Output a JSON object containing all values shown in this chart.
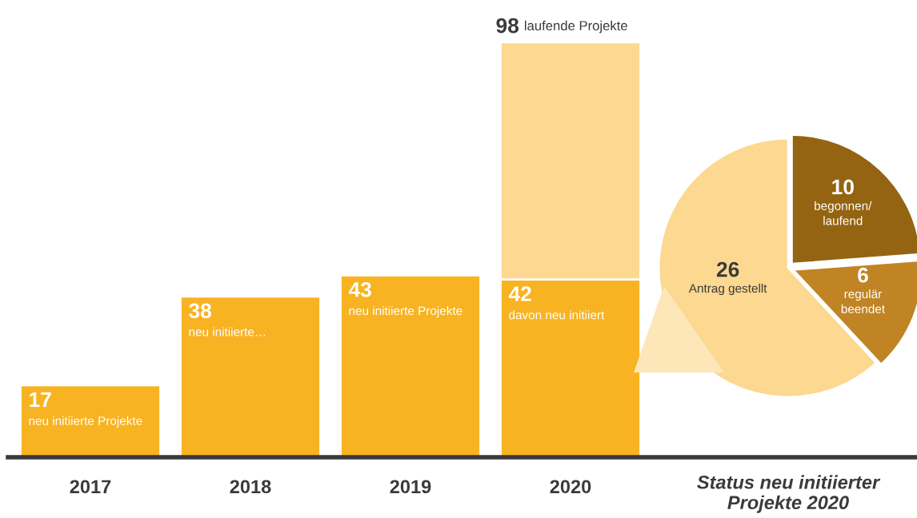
{
  "chart_data": [
    {
      "type": "bar",
      "stacked": true,
      "legend": false,
      "grid": false,
      "categories": [
        "2017",
        "2018",
        "2019",
        "2020"
      ],
      "series": [
        {
          "color": "#f8b322",
          "values": [
            17,
            38,
            43,
            42
          ],
          "value_labels": [
            "17",
            "38",
            "43",
            "42"
          ]
        },
        {
          "color": "#fcd890",
          "values": [
            null,
            null,
            null,
            56
          ]
        }
      ],
      "totals": [
        null,
        null,
        null,
        "98"
      ],
      "annotations": [
        {
          "text": "neu initiierte Projekte",
          "x": "2017",
          "y": 17
        },
        {
          "text": "neu initiierte…",
          "x": "2018",
          "y": 38
        },
        {
          "text": "neu initiierte Projekte",
          "x": "2019",
          "y": 43
        },
        {
          "text": "davon neu initiiert",
          "x": "2020",
          "y": 42
        },
        {
          "text": "laufende Projekte",
          "x": "2020",
          "y": 98
        }
      ]
    },
    {
      "type": "pie",
      "title": "Status neu initiierter Projekte 2020",
      "categories": [
        "begonnen/\nlaufend",
        "regulär\nbeendet",
        "Antrag gestellt"
      ],
      "values": [
        10,
        6,
        26
      ],
      "colors": [
        "#946412",
        "#c08424",
        "#fcd890"
      ],
      "data_labels": true
    }
  ]
}
